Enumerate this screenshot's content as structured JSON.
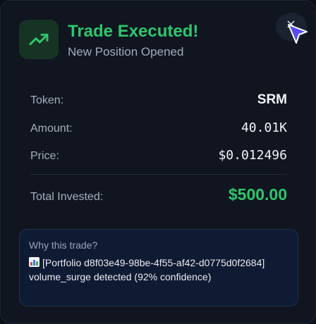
{
  "header": {
    "title": "Trade Executed!",
    "subtitle": "New Position Opened",
    "icon": "trending-up-icon",
    "close_icon": "×"
  },
  "details": {
    "token_label": "Token:",
    "token_value": "SRM",
    "amount_label": "Amount:",
    "amount_value": "40.01K",
    "price_label": "Price:",
    "price_value": "$0.012496",
    "total_label": "Total Invested:",
    "total_value": "$500.00"
  },
  "reason": {
    "title": "Why this trade?",
    "icon": "bar-chart-emoji",
    "text": "[Portfolio d8f03e49-98be-4f55-af42-d0775d0f2684] volume_surge detected (92% confidence)"
  },
  "colors": {
    "accent_green": "#2fc66d",
    "background": "#101520",
    "reason_bg": "#0f1b33",
    "cursor": "#5b4cf0"
  }
}
